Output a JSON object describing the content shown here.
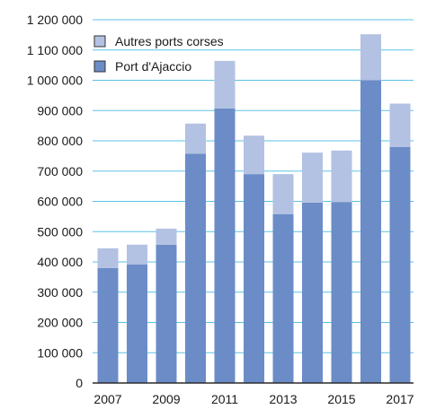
{
  "chart_data": {
    "type": "bar",
    "stacked": true,
    "title": "",
    "xlabel": "",
    "ylabel": "",
    "categories": [
      "2007",
      "2008",
      "2009",
      "2010",
      "2011",
      "2012",
      "2013",
      "2014",
      "2015",
      "2016",
      "2017"
    ],
    "x_tick_labels": [
      "2007",
      "2009",
      "2011",
      "2013",
      "2015",
      "2017"
    ],
    "y_tick_labels": [
      "0",
      "100 000",
      "200 000",
      "300 000",
      "400 000",
      "500 000",
      "600 000",
      "700 000",
      "800 000",
      "900 000",
      "1 000 000",
      "1 100 000",
      "1 200 000"
    ],
    "ylim": [
      0,
      1200000
    ],
    "grid": true,
    "legend_position": "top-left",
    "series": [
      {
        "name": "Port d'Ajaccio",
        "color": "#6b8cc7",
        "values": [
          380000,
          392000,
          457000,
          757000,
          907000,
          690000,
          558000,
          596000,
          598000,
          1000000,
          780000
        ]
      },
      {
        "name": "Autres ports corses",
        "color": "#b3c2e2",
        "values": [
          65000,
          65000,
          53000,
          100000,
          157000,
          127000,
          132000,
          165000,
          170000,
          152000,
          143000
        ]
      }
    ],
    "legend_order": [
      1,
      0
    ],
    "gridline_color": "#5bc2e7"
  }
}
